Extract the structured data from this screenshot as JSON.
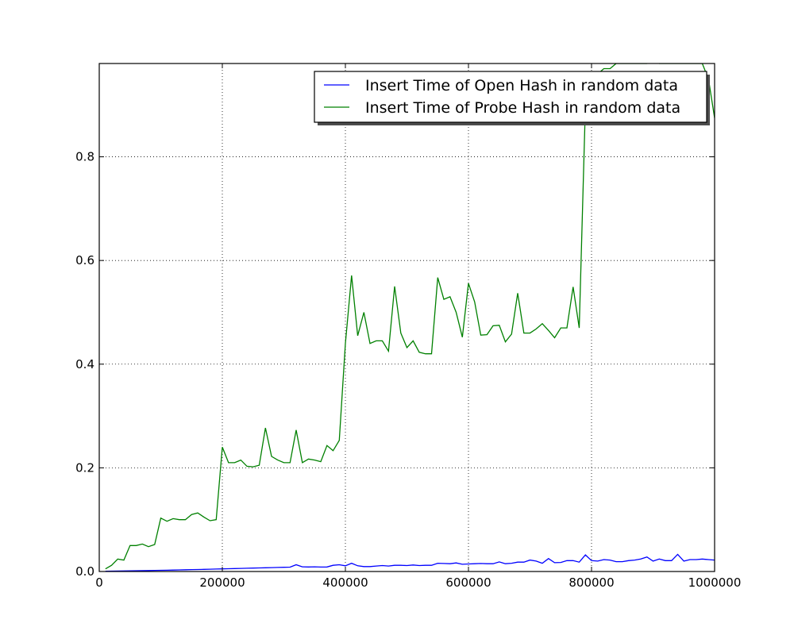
{
  "chart_data": {
    "type": "line",
    "title": "",
    "xlabel": "",
    "ylabel": "",
    "xlim": [
      0,
      1000000
    ],
    "ylim": [
      0,
      0.98
    ],
    "grid": true,
    "legend_position": "top-right",
    "x_ticks": [
      0,
      200000,
      400000,
      600000,
      800000,
      1000000
    ],
    "x_tick_labels": [
      "0",
      "200000",
      "400000",
      "600000",
      "800000",
      "1000000"
    ],
    "y_ticks": [
      0.0,
      0.2,
      0.4,
      0.6,
      0.8
    ],
    "y_tick_labels": [
      "0.0",
      "0.2",
      "0.4",
      "0.6",
      "0.8"
    ],
    "x": [
      10000,
      20000,
      30000,
      40000,
      50000,
      60000,
      70000,
      80000,
      90000,
      100000,
      110000,
      120000,
      130000,
      140000,
      150000,
      160000,
      170000,
      180000,
      190000,
      200000,
      210000,
      220000,
      230000,
      240000,
      250000,
      260000,
      270000,
      280000,
      290000,
      300000,
      310000,
      320000,
      330000,
      340000,
      350000,
      360000,
      370000,
      380000,
      390000,
      400000,
      410000,
      420000,
      430000,
      440000,
      450000,
      460000,
      470000,
      480000,
      490000,
      500000,
      510000,
      520000,
      530000,
      540000,
      550000,
      560000,
      570000,
      580000,
      590000,
      600000,
      610000,
      620000,
      630000,
      640000,
      650000,
      660000,
      670000,
      680000,
      690000,
      700000,
      710000,
      720000,
      730000,
      740000,
      750000,
      760000,
      770000,
      780000,
      790000,
      800000,
      810000,
      820000,
      830000,
      840000,
      850000,
      860000,
      870000,
      880000,
      890000,
      900000,
      910000,
      920000,
      930000,
      940000,
      950000,
      960000,
      970000,
      980000,
      990000,
      1000000
    ],
    "series": [
      {
        "name": "Insert Time of Open Hash in random data",
        "color": "#0000ff",
        "values": [
          0.0005,
          0.0007,
          0.0009,
          0.0011,
          0.0013,
          0.0015,
          0.0017,
          0.0019,
          0.0021,
          0.0023,
          0.0025,
          0.0027,
          0.003,
          0.0033,
          0.0036,
          0.0039,
          0.0042,
          0.0045,
          0.0048,
          0.0051,
          0.0054,
          0.0057,
          0.006,
          0.0063,
          0.0066,
          0.0069,
          0.0072,
          0.0075,
          0.0078,
          0.0081,
          0.0084,
          0.013,
          0.009,
          0.0088,
          0.009,
          0.0086,
          0.0088,
          0.012,
          0.013,
          0.011,
          0.016,
          0.011,
          0.0095,
          0.0095,
          0.0105,
          0.0115,
          0.0105,
          0.012,
          0.012,
          0.0115,
          0.0125,
          0.0115,
          0.012,
          0.012,
          0.016,
          0.0155,
          0.015,
          0.0165,
          0.014,
          0.0145,
          0.015,
          0.0155,
          0.015,
          0.015,
          0.0185,
          0.015,
          0.016,
          0.018,
          0.018,
          0.022,
          0.02,
          0.016,
          0.025,
          0.017,
          0.0175,
          0.021,
          0.021,
          0.018,
          0.032,
          0.021,
          0.02,
          0.023,
          0.022,
          0.019,
          0.019,
          0.021,
          0.022,
          0.024,
          0.028,
          0.02,
          0.024,
          0.021,
          0.021,
          0.033,
          0.02,
          0.023,
          0.023,
          0.024,
          0.023,
          0.022
        ]
      },
      {
        "name": "Insert Time of Probe Hash in random data",
        "color": "#008000",
        "values": [
          0.005,
          0.012,
          0.024,
          0.022,
          0.05,
          0.05,
          0.053,
          0.048,
          0.052,
          0.103,
          0.097,
          0.102,
          0.1,
          0.1,
          0.11,
          0.113,
          0.105,
          0.098,
          0.1,
          0.24,
          0.21,
          0.21,
          0.215,
          0.203,
          0.202,
          0.205,
          0.277,
          0.222,
          0.215,
          0.21,
          0.21,
          0.273,
          0.21,
          0.217,
          0.215,
          0.212,
          0.243,
          0.233,
          0.253,
          0.44,
          0.571,
          0.455,
          0.5,
          0.44,
          0.445,
          0.445,
          0.425,
          0.55,
          0.46,
          0.432,
          0.445,
          0.423,
          0.42,
          0.42,
          0.567,
          0.525,
          0.53,
          0.5,
          0.452,
          0.556,
          0.52,
          0.456,
          0.457,
          0.474,
          0.475,
          0.443,
          0.458,
          0.537,
          0.46,
          0.46,
          0.468,
          0.478,
          0.465,
          0.451,
          0.47,
          0.47,
          0.549,
          0.47,
          0.9,
          0.95,
          0.96,
          0.97,
          0.97,
          0.98,
          0.98,
          0.98,
          0.98,
          0.98,
          0.98,
          0.985,
          0.98,
          0.98,
          0.98,
          0.98,
          0.98,
          0.98,
          0.98,
          0.98,
          0.95,
          0.875
        ]
      }
    ]
  }
}
